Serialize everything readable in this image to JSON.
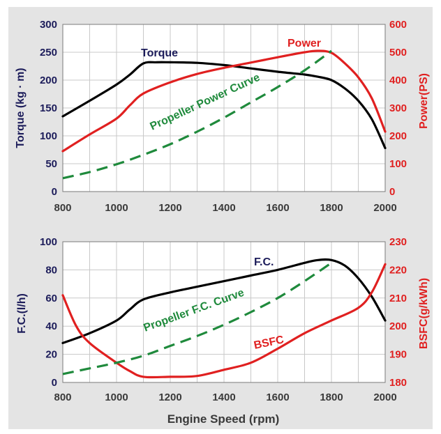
{
  "chart_data": [
    {
      "type": "line",
      "xlim": [
        800,
        2000
      ],
      "x_ticks": [
        800,
        1000,
        1200,
        1400,
        1600,
        1800,
        2000
      ],
      "left_axis": {
        "label": "Torque (kg · m)",
        "ylim": [
          0,
          300
        ],
        "ticks": [
          0,
          50,
          100,
          150,
          200,
          250,
          300
        ],
        "color": "#1c1c5a"
      },
      "right_axis": {
        "label": "Power(PS)",
        "ylim": [
          0,
          600
        ],
        "ticks": [
          0,
          100,
          200,
          300,
          400,
          500,
          600
        ],
        "color": "#e02020"
      },
      "grid": true,
      "series": [
        {
          "name": "Torque",
          "axis": "left",
          "color": "#000000",
          "style": "solid",
          "x": [
            800,
            900,
            1000,
            1050,
            1100,
            1150,
            1200,
            1300,
            1400,
            1500,
            1600,
            1700,
            1750,
            1800,
            1850,
            1900,
            1950,
            2000
          ],
          "y": [
            135,
            163,
            192,
            210,
            230,
            232,
            232,
            231,
            227,
            221,
            215,
            210,
            206,
            200,
            185,
            163,
            130,
            78
          ]
        },
        {
          "name": "Power",
          "axis": "right",
          "color": "#e02020",
          "style": "solid",
          "x": [
            800,
            900,
            1000,
            1050,
            1100,
            1200,
            1300,
            1400,
            1500,
            1600,
            1700,
            1750,
            1800,
            1850,
            1900,
            1950,
            2000
          ],
          "y": [
            145,
            205,
            262,
            310,
            352,
            392,
            422,
            444,
            463,
            482,
            500,
            505,
            498,
            460,
            410,
            335,
            215
          ]
        },
        {
          "name": "Propeller Power Curve",
          "axis": "right",
          "color": "#1f8a3c",
          "style": "dashed",
          "x": [
            800,
            900,
            1000,
            1100,
            1200,
            1300,
            1400,
            1500,
            1600,
            1700,
            1800
          ],
          "y": [
            48,
            70,
            98,
            132,
            170,
            215,
            265,
            320,
            375,
            435,
            505
          ]
        }
      ],
      "annotations": [
        {
          "text": "Torque",
          "color": "#1c1c5a"
        },
        {
          "text": "Power",
          "color": "#e02020"
        },
        {
          "text": "Propeller Power Curve",
          "color": "#1f8a3c"
        }
      ]
    },
    {
      "type": "line",
      "xlim": [
        800,
        2000
      ],
      "x_ticks": [
        800,
        1000,
        1200,
        1400,
        1600,
        1800,
        2000
      ],
      "xlabel": "Engine Speed (rpm)",
      "left_axis": {
        "label": "F.C.(l/h)",
        "ylim": [
          0,
          100
        ],
        "ticks": [
          0,
          20,
          40,
          60,
          80,
          100
        ],
        "color": "#1c1c5a"
      },
      "right_axis": {
        "label": "BSFC(g/kWh)",
        "ylim": [
          180,
          230
        ],
        "ticks": [
          180,
          190,
          200,
          210,
          220,
          230
        ],
        "color": "#e02020"
      },
      "grid": true,
      "series": [
        {
          "name": "F.C.",
          "axis": "left",
          "color": "#000000",
          "style": "solid",
          "x": [
            800,
            900,
            1000,
            1050,
            1100,
            1200,
            1300,
            1400,
            1500,
            1600,
            1700,
            1750,
            1800,
            1850,
            1900,
            1950,
            2000
          ],
          "y": [
            28,
            35,
            44,
            52,
            59,
            64,
            68,
            72,
            76,
            80,
            85,
            87,
            87,
            83,
            74,
            61,
            44
          ]
        },
        {
          "name": "BSFC",
          "axis": "right",
          "color": "#e02020",
          "style": "solid",
          "x": [
            800,
            850,
            900,
            1000,
            1050,
            1100,
            1200,
            1300,
            1400,
            1500,
            1600,
            1700,
            1800,
            1900,
            1950,
            2000
          ],
          "y": [
            211,
            200,
            194,
            187,
            184,
            182,
            182,
            182.3,
            184.5,
            187,
            192,
            197.5,
            202,
            206.5,
            212,
            222
          ]
        },
        {
          "name": "Propeller F.C. Curve",
          "axis": "left",
          "color": "#1f8a3c",
          "style": "dashed",
          "x": [
            800,
            900,
            1000,
            1100,
            1200,
            1300,
            1400,
            1500,
            1600,
            1700,
            1800
          ],
          "y": [
            6,
            10,
            14,
            19,
            26,
            33,
            41,
            50,
            60,
            72,
            85
          ]
        }
      ],
      "annotations": [
        {
          "text": "F.C.",
          "color": "#1c1c5a"
        },
        {
          "text": "BSFC",
          "color": "#e02020"
        },
        {
          "text": "Propeller F.C. Curve",
          "color": "#1f8a3c"
        }
      ]
    }
  ]
}
